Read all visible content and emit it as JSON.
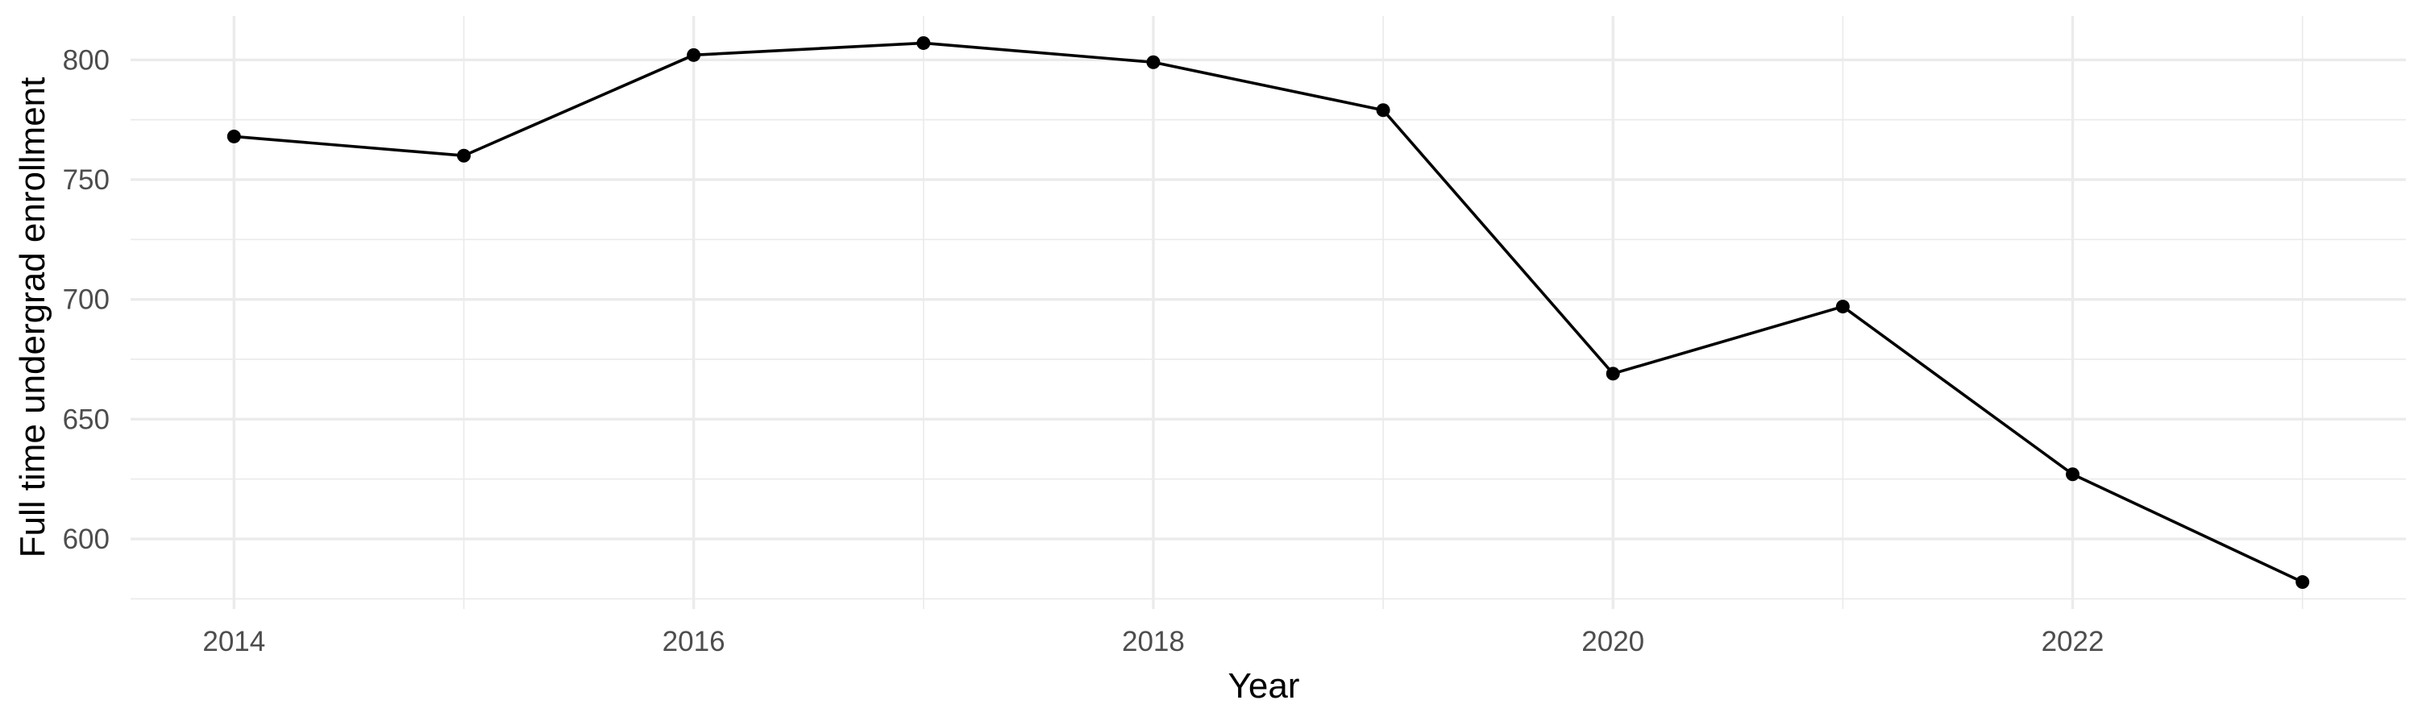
{
  "chart_data": {
    "type": "line",
    "title": "",
    "xlabel": "Year",
    "ylabel": "Full time undergrad enrollment",
    "x": [
      2014,
      2015,
      2016,
      2017,
      2018,
      2019,
      2020,
      2021,
      2022,
      2023
    ],
    "series": [
      {
        "values": [
          768,
          760,
          802,
          807,
          799,
          779,
          669,
          697,
          627,
          582
        ]
      }
    ],
    "xticks": [
      2014,
      2016,
      2018,
      2020,
      2022
    ],
    "xtick_labels": [
      "2014",
      "2016",
      "2018",
      "2020",
      "2022"
    ],
    "yticks": [
      600,
      650,
      700,
      750,
      800
    ],
    "ytick_labels": [
      "600",
      "650",
      "700",
      "750",
      "800"
    ],
    "xlim": [
      2013.55,
      2023.45
    ],
    "ylim": [
      570.75,
      818.25
    ],
    "grid": true,
    "legend": "none",
    "colors": {
      "line": "#000000",
      "points": "#000000",
      "grid": "#ebebeb",
      "tick_text": "#4d4d4d",
      "axis_title": "#000000",
      "background": "#ffffff"
    }
  }
}
